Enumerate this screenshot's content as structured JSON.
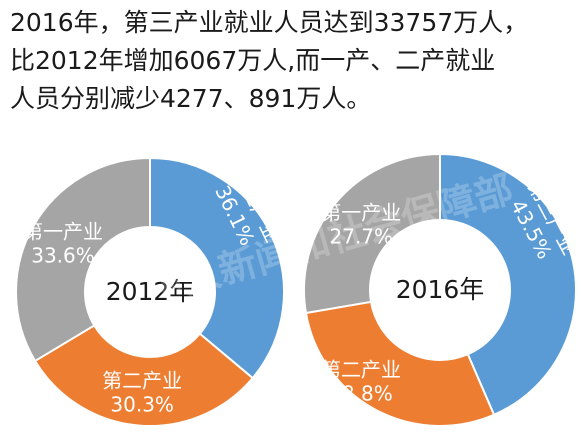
{
  "headline": {
    "lines": [
      "2016年，第三产业就业人员达到33757万人，",
      "比2012年增加6067万人,而一产、二产就业",
      "人员分别减少4277、891万人。"
    ]
  },
  "watermark": "中人新闻和社会保障部",
  "chart_data": [
    {
      "type": "pie",
      "donut": true,
      "center_label": "2012年",
      "slices": [
        {
          "label": "第三产业",
          "value": 36.1,
          "value_text": "36.1%",
          "color": "#5b9bd5"
        },
        {
          "label": "第二产业",
          "value": 30.3,
          "value_text": "30.3%",
          "color": "#ed7d31"
        },
        {
          "label": "第一产业",
          "value": 33.6,
          "value_text": "33.6%",
          "color": "#a5a5a5"
        }
      ]
    },
    {
      "type": "pie",
      "donut": true,
      "center_label": "2016年",
      "slices": [
        {
          "label": "第三产业",
          "value": 43.5,
          "value_text": "43.5%",
          "color": "#5b9bd5"
        },
        {
          "label": "第二产业",
          "value": 28.8,
          "value_text": "28.8%",
          "color": "#ed7d31"
        },
        {
          "label": "第一产业",
          "value": 27.7,
          "value_text": "27.7%",
          "color": "#a5a5a5"
        }
      ]
    }
  ]
}
